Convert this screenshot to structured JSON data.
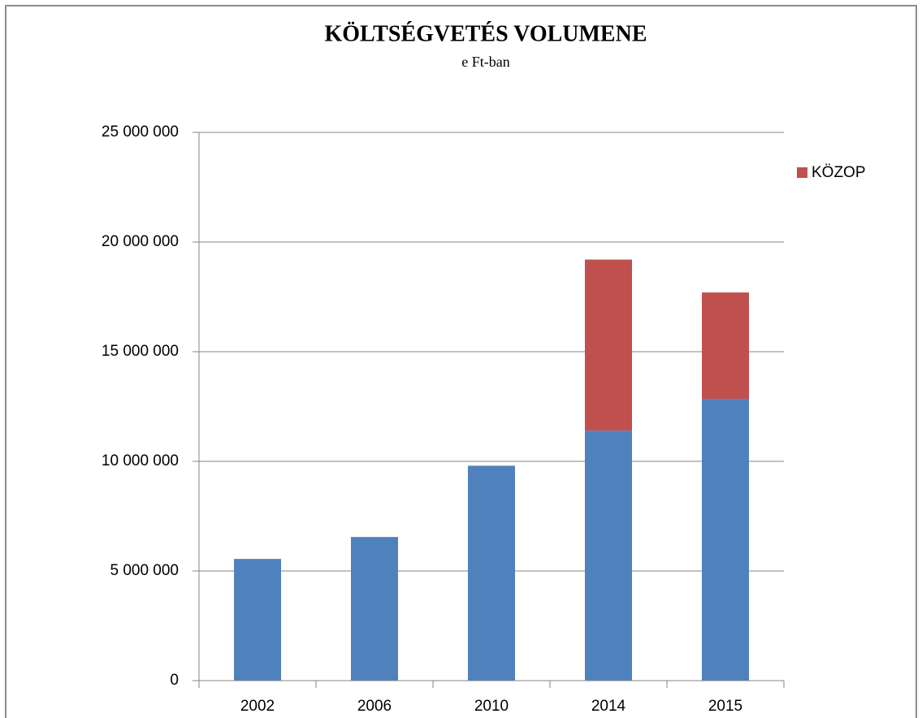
{
  "chart_data": {
    "type": "stacked_bar",
    "title": "KÖLTSÉGVETÉS VOLUMENE",
    "subtitle": "e Ft-ban",
    "categories": [
      "2002",
      "2006",
      "2010",
      "2014",
      "2015"
    ],
    "series": [
      {
        "color": "#4f81bd",
        "values": [
          5550000,
          6550000,
          9800000,
          11400000,
          12850000
        ]
      },
      {
        "name": "KÖZOP",
        "color": "#c0504d",
        "values": [
          null,
          null,
          null,
          7800000,
          4850000
        ]
      }
    ],
    "ylim": [
      0,
      25000000
    ],
    "yticks": [
      0,
      {
        "value": 5000000,
        "label": "5 000 000"
      },
      {
        "value": 10000000,
        "label": "10 000 000"
      },
      {
        "value": 15000000,
        "label": "15 000 000"
      },
      {
        "value": 20000000,
        "label": "20 000 000"
      },
      {
        "value": 25000000,
        "label": "25 000 000"
      }
    ],
    "grid": true,
    "legend": "right"
  }
}
